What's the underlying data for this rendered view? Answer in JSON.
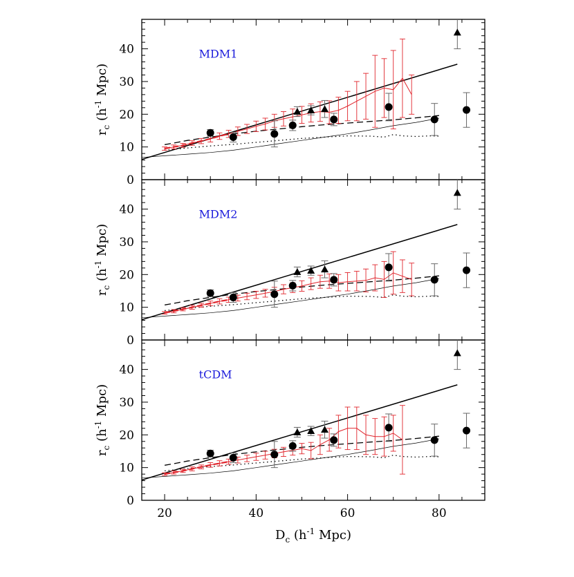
{
  "figure": {
    "top_caption": "",
    "ylabel": "r_c (h^-1 Mpc)",
    "xlabel": "D_c (h^-1 Mpc)",
    "colors": {
      "model": "#e0242b",
      "panel_label": "#1a1adb",
      "obs": "#000000",
      "obs_err": "#666666"
    }
  },
  "chart_data": [
    {
      "type": "line",
      "panel_label": "MDM1",
      "xlim": [
        15,
        90
      ],
      "ylim": [
        0,
        49
      ],
      "yticks": [
        0,
        10,
        20,
        30,
        40
      ],
      "xticks": [
        20,
        40,
        60,
        80
      ],
      "obs_circles": [
        {
          "x": 30,
          "y": 14.3,
          "lo": 13.3,
          "hi": 15.3
        },
        {
          "x": 35,
          "y": 13.0,
          "lo": 11.5,
          "hi": 14.5
        },
        {
          "x": 44,
          "y": 14.0,
          "lo": 10.0,
          "hi": 18.0
        },
        {
          "x": 48,
          "y": 16.6,
          "lo": 15.0,
          "hi": 18.2
        },
        {
          "x": 57,
          "y": 18.4,
          "lo": 16.5,
          "hi": 20.3
        },
        {
          "x": 69,
          "y": 22.2,
          "lo": 18.0,
          "hi": 26.4
        },
        {
          "x": 79,
          "y": 18.4,
          "lo": 13.5,
          "hi": 23.3
        },
        {
          "x": 86,
          "y": 21.3,
          "lo": 16.0,
          "hi": 26.6
        }
      ],
      "obs_triangles": [
        {
          "x": 49,
          "y": 20.8,
          "lo": 19.3,
          "hi": 22.3
        },
        {
          "x": 52,
          "y": 21.2,
          "lo": 19.8,
          "hi": 22.6
        },
        {
          "x": 55,
          "y": 21.6,
          "lo": 19.0,
          "hi": 24.2
        },
        {
          "x": 84,
          "y": 45.0,
          "lo": 40.0,
          "hi": 50.0
        }
      ],
      "model": {
        "x": [
          20,
          22,
          24,
          26,
          28,
          30,
          32,
          34,
          36,
          38,
          40,
          42,
          44,
          46,
          48,
          50,
          52,
          54,
          56,
          58,
          60,
          62,
          64,
          66,
          68,
          70,
          72,
          74
        ],
        "y": [
          9.5,
          10.0,
          10.5,
          11.2,
          11.8,
          12.5,
          13.3,
          14.0,
          14.8,
          15.5,
          16.3,
          17.0,
          18.0,
          18.6,
          19.2,
          19.8,
          20.4,
          20.8,
          20.6,
          21.2,
          22.5,
          24.0,
          25.5,
          27.0,
          28.0,
          27.5,
          31.0,
          26.0
        ],
        "err": [
          0.5,
          0.6,
          0.6,
          0.7,
          0.8,
          1.0,
          1.0,
          1.1,
          1.3,
          1.4,
          1.6,
          1.8,
          2.0,
          2.2,
          2.4,
          2.6,
          2.8,
          3.0,
          3.5,
          4.0,
          4.5,
          6.0,
          7.0,
          11.0,
          9.0,
          12.0,
          12.0,
          6.0
        ]
      },
      "solid_line": {
        "x": [
          15,
          84
        ],
        "y": [
          6.2,
          35.3
        ]
      },
      "dashed_line": {
        "x": [
          20,
          22,
          25,
          30,
          35,
          40,
          45,
          50,
          55,
          60,
          65,
          70,
          75,
          80
        ],
        "y": [
          10.7,
          11.2,
          12.0,
          13.0,
          14.0,
          14.8,
          15.5,
          16.2,
          16.8,
          17.3,
          17.8,
          18.3,
          18.9,
          19.6
        ]
      },
      "dotted_line": {
        "x": [
          20,
          25,
          30,
          35,
          40,
          45,
          50,
          55,
          60,
          65,
          68,
          70,
          72,
          75,
          78,
          80
        ],
        "y": [
          9.0,
          9.7,
          10.3,
          10.8,
          11.4,
          12.0,
          12.6,
          13.0,
          13.4,
          13.3,
          13.0,
          13.8,
          13.4,
          13.2,
          13.4,
          13.3
        ]
      },
      "thin_line": {
        "x": [
          15,
          20,
          25,
          30,
          35,
          40,
          45,
          50,
          55,
          60,
          65,
          70,
          75,
          80
        ],
        "y": [
          6.8,
          7.3,
          7.8,
          8.3,
          9.0,
          10.0,
          11.0,
          12.0,
          13.0,
          14.0,
          15.2,
          16.5,
          17.5,
          18.8
        ]
      }
    },
    {
      "type": "line",
      "panel_label": "MDM2",
      "xlim": [
        15,
        90
      ],
      "ylim": [
        0,
        49
      ],
      "yticks": [
        0,
        10,
        20,
        30,
        40
      ],
      "xticks": [
        20,
        40,
        60,
        80
      ],
      "obs_circles": [
        {
          "x": 30,
          "y": 14.3,
          "lo": 13.3,
          "hi": 15.3
        },
        {
          "x": 35,
          "y": 13.0,
          "lo": 11.5,
          "hi": 14.5
        },
        {
          "x": 44,
          "y": 14.0,
          "lo": 10.0,
          "hi": 18.0
        },
        {
          "x": 48,
          "y": 16.6,
          "lo": 15.0,
          "hi": 18.2
        },
        {
          "x": 57,
          "y": 18.4,
          "lo": 16.5,
          "hi": 20.3
        },
        {
          "x": 69,
          "y": 22.2,
          "lo": 18.0,
          "hi": 26.4
        },
        {
          "x": 79,
          "y": 18.4,
          "lo": 13.5,
          "hi": 23.3
        },
        {
          "x": 86,
          "y": 21.3,
          "lo": 16.0,
          "hi": 26.6
        }
      ],
      "obs_triangles": [
        {
          "x": 49,
          "y": 20.8,
          "lo": 19.3,
          "hi": 22.3
        },
        {
          "x": 52,
          "y": 21.2,
          "lo": 19.8,
          "hi": 22.6
        },
        {
          "x": 55,
          "y": 21.6,
          "lo": 19.0,
          "hi": 24.2
        },
        {
          "x": 84,
          "y": 45.0,
          "lo": 40.0,
          "hi": 50.0
        }
      ],
      "model": {
        "x": [
          20,
          22,
          24,
          26,
          28,
          30,
          32,
          34,
          36,
          38,
          40,
          42,
          44,
          46,
          48,
          50,
          52,
          54,
          56,
          58,
          60,
          62,
          64,
          66,
          68,
          70,
          72,
          74
        ],
        "y": [
          8.3,
          8.8,
          9.4,
          10.0,
          10.6,
          11.2,
          11.8,
          12.3,
          12.8,
          13.3,
          13.8,
          14.3,
          14.8,
          15.5,
          16.0,
          16.5,
          17.2,
          17.8,
          18.0,
          17.5,
          17.8,
          18.0,
          18.2,
          19.0,
          18.5,
          20.5,
          19.5,
          18.5
        ],
        "err": [
          0.4,
          0.5,
          0.5,
          0.6,
          0.6,
          0.7,
          0.8,
          0.8,
          0.9,
          1.0,
          1.1,
          1.2,
          1.3,
          1.4,
          1.5,
          1.6,
          1.8,
          2.0,
          2.2,
          2.5,
          2.8,
          3.0,
          3.5,
          4.0,
          5.5,
          6.5,
          5.0,
          5.0
        ]
      },
      "solid_line": {
        "x": [
          15,
          84
        ],
        "y": [
          6.2,
          35.3
        ]
      },
      "dashed_line": {
        "x": [
          20,
          22,
          25,
          30,
          35,
          40,
          45,
          50,
          55,
          60,
          65,
          70,
          75,
          80
        ],
        "y": [
          10.7,
          11.2,
          12.0,
          13.0,
          14.0,
          14.8,
          15.5,
          16.2,
          16.8,
          17.3,
          17.8,
          18.3,
          18.9,
          19.6
        ]
      },
      "dotted_line": {
        "x": [
          20,
          25,
          30,
          35,
          40,
          45,
          50,
          55,
          60,
          65,
          68,
          70,
          72,
          75,
          78,
          80
        ],
        "y": [
          9.0,
          9.7,
          10.3,
          10.8,
          11.4,
          12.0,
          12.6,
          13.0,
          13.4,
          13.3,
          13.0,
          13.8,
          13.4,
          13.2,
          13.4,
          13.3
        ]
      },
      "thin_line": {
        "x": [
          15,
          20,
          25,
          30,
          35,
          40,
          45,
          50,
          55,
          60,
          65,
          70,
          75,
          80
        ],
        "y": [
          6.8,
          7.3,
          7.8,
          8.3,
          9.0,
          10.0,
          11.0,
          12.0,
          13.0,
          14.0,
          15.2,
          16.5,
          17.5,
          18.8
        ]
      }
    },
    {
      "type": "line",
      "panel_label": "tCDM",
      "xlim": [
        15,
        90
      ],
      "ylim": [
        0,
        49
      ],
      "yticks": [
        0,
        10,
        20,
        30,
        40
      ],
      "xticks": [
        20,
        40,
        60,
        80
      ],
      "obs_circles": [
        {
          "x": 30,
          "y": 14.3,
          "lo": 13.3,
          "hi": 15.3
        },
        {
          "x": 35,
          "y": 13.0,
          "lo": 11.5,
          "hi": 14.5
        },
        {
          "x": 44,
          "y": 14.0,
          "lo": 10.0,
          "hi": 18.0
        },
        {
          "x": 48,
          "y": 16.6,
          "lo": 15.0,
          "hi": 18.2
        },
        {
          "x": 57,
          "y": 18.4,
          "lo": 16.5,
          "hi": 20.3
        },
        {
          "x": 69,
          "y": 22.2,
          "lo": 18.0,
          "hi": 26.4
        },
        {
          "x": 79,
          "y": 18.4,
          "lo": 13.5,
          "hi": 23.3
        },
        {
          "x": 86,
          "y": 21.3,
          "lo": 16.0,
          "hi": 26.6
        }
      ],
      "obs_triangles": [
        {
          "x": 49,
          "y": 20.8,
          "lo": 19.3,
          "hi": 22.3
        },
        {
          "x": 52,
          "y": 21.2,
          "lo": 19.8,
          "hi": 22.6
        },
        {
          "x": 55,
          "y": 21.6,
          "lo": 19.0,
          "hi": 24.2
        },
        {
          "x": 84,
          "y": 45.0,
          "lo": 40.0,
          "hi": 50.0
        }
      ],
      "model": {
        "x": [
          20,
          22,
          24,
          26,
          28,
          30,
          32,
          34,
          36,
          38,
          40,
          42,
          44,
          46,
          48,
          50,
          52,
          54,
          56,
          58,
          60,
          62,
          64,
          66,
          68,
          70,
          72
        ],
        "y": [
          8.0,
          8.5,
          9.0,
          9.6,
          10.2,
          10.8,
          11.3,
          11.8,
          12.3,
          12.8,
          13.3,
          13.8,
          14.3,
          14.8,
          15.3,
          15.8,
          15.2,
          17.0,
          18.5,
          21.0,
          22.0,
          22.0,
          20.0,
          19.5,
          19.5,
          20.5,
          18.5
        ],
        "err": [
          0.4,
          0.5,
          0.5,
          0.6,
          0.6,
          0.7,
          0.8,
          0.8,
          0.9,
          1.0,
          1.1,
          1.2,
          1.3,
          1.4,
          1.5,
          1.6,
          2.5,
          3.0,
          3.5,
          5.0,
          6.5,
          6.5,
          6.0,
          5.5,
          6.0,
          5.5,
          10.5
        ]
      },
      "solid_line": {
        "x": [
          15,
          84
        ],
        "y": [
          6.2,
          35.3
        ]
      },
      "dashed_line": {
        "x": [
          20,
          22,
          25,
          30,
          35,
          40,
          45,
          50,
          55,
          60,
          65,
          70,
          75,
          80
        ],
        "y": [
          10.7,
          11.2,
          12.0,
          13.0,
          14.0,
          14.8,
          15.5,
          16.2,
          16.8,
          17.3,
          17.8,
          18.3,
          18.9,
          19.6
        ]
      },
      "dotted_line": {
        "x": [
          20,
          25,
          30,
          35,
          40,
          45,
          50,
          55,
          60,
          65,
          68,
          70,
          72,
          75,
          78,
          80
        ],
        "y": [
          9.0,
          9.7,
          10.3,
          10.8,
          11.4,
          12.0,
          12.6,
          13.0,
          13.4,
          13.3,
          13.0,
          13.8,
          13.4,
          13.2,
          13.4,
          13.3
        ]
      },
      "thin_line": {
        "x": [
          15,
          20,
          25,
          30,
          35,
          40,
          45,
          50,
          55,
          60,
          65,
          70,
          75,
          80
        ],
        "y": [
          6.8,
          7.3,
          7.8,
          8.3,
          9.0,
          10.0,
          11.0,
          12.0,
          13.0,
          14.0,
          15.2,
          16.5,
          17.5,
          18.8
        ]
      }
    }
  ]
}
